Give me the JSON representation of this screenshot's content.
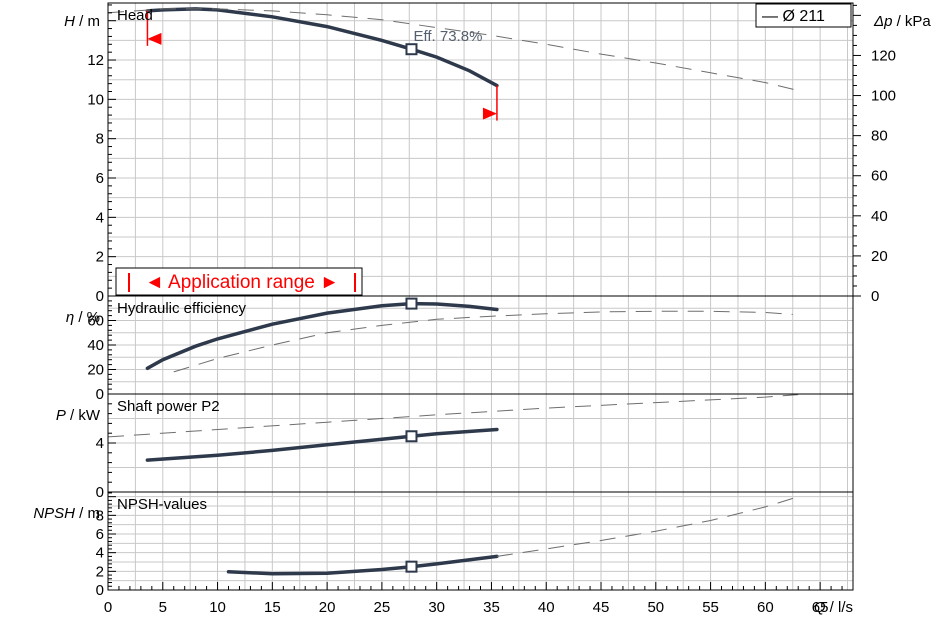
{
  "legend": {
    "entry": "— Ø 211"
  },
  "application_range": {
    "label": "◄ Application range ►"
  },
  "annotation": {
    "eff_label": "Eff.  73.8%"
  },
  "colors": {
    "curve": "#2e3a4c",
    "dashed": "#6e6e6e",
    "accent_red": "#ff0000",
    "grid": "#c8c8c8"
  },
  "chart_data": [
    {
      "type": "line",
      "title": "Head",
      "ylabel_var": "H",
      "ylabel_unit": " / m",
      "y2label_var": "Δp",
      "y2label_unit": " / kPa",
      "xlim": [
        0,
        68
      ],
      "ylim": [
        0,
        14.9
      ],
      "y_ticks": [
        0,
        2,
        4,
        6,
        8,
        10,
        12
      ],
      "y2_ticks": [
        0,
        20,
        40,
        60,
        80,
        100,
        120
      ],
      "y2_factor": 9.81,
      "series": [
        {
          "style": "solid",
          "points": [
            [
              3.6,
              14.5
            ],
            [
              5,
              14.55
            ],
            [
              8,
              14.6
            ],
            [
              10,
              14.55
            ],
            [
              15,
              14.2
            ],
            [
              20,
              13.7
            ],
            [
              25,
              13.0
            ],
            [
              27.7,
              12.55
            ],
            [
              30,
              12.15
            ],
            [
              33,
              11.45
            ],
            [
              35.5,
              10.7
            ]
          ]
        },
        {
          "style": "dashed",
          "points": [
            [
              0,
              14.4
            ],
            [
              5,
              14.6
            ],
            [
              10,
              14.6
            ],
            [
              15,
              14.5
            ],
            [
              20,
              14.3
            ],
            [
              25,
              14.05
            ],
            [
              30,
              13.65
            ],
            [
              35,
              13.25
            ],
            [
              40,
              12.8
            ],
            [
              45,
              12.3
            ],
            [
              50,
              11.85
            ],
            [
              55,
              11.35
            ],
            [
              60,
              10.85
            ],
            [
              63,
              10.45
            ]
          ]
        }
      ],
      "duty_point": [
        27.7,
        12.55
      ],
      "range_markers": [
        [
          3.6,
          14.5
        ],
        [
          35.5,
          10.7
        ]
      ]
    },
    {
      "type": "line",
      "title": "Hydraulic efficiency",
      "ylabel_var": "η",
      "ylabel_unit": " / %",
      "xlim": [
        0,
        68
      ],
      "ylim": [
        0,
        80
      ],
      "y_ticks": [
        0,
        20,
        40,
        60
      ],
      "series": [
        {
          "style": "solid",
          "points": [
            [
              3.6,
              21
            ],
            [
              5,
              28
            ],
            [
              8,
              39
            ],
            [
              10,
              45
            ],
            [
              15,
              57
            ],
            [
              20,
              66
            ],
            [
              25,
              72
            ],
            [
              27.7,
              73.8
            ],
            [
              30,
              73.5
            ],
            [
              33,
              71.5
            ],
            [
              35.5,
              69
            ]
          ]
        },
        {
          "style": "dashed",
          "points": [
            [
              6,
              18
            ],
            [
              10,
              29
            ],
            [
              15,
              40
            ],
            [
              20,
              50
            ],
            [
              25,
              56
            ],
            [
              30,
              61
            ],
            [
              35,
              63.5
            ],
            [
              40,
              65.5
            ],
            [
              45,
              67
            ],
            [
              50,
              67.5
            ],
            [
              55,
              67.5
            ],
            [
              60,
              66.5
            ],
            [
              62.5,
              65
            ]
          ]
        }
      ],
      "duty_point": [
        27.7,
        73.8
      ]
    },
    {
      "type": "line",
      "title": "Shaft power P2",
      "ylabel_var": "P",
      "ylabel_unit": "  / kW",
      "xlim": [
        0,
        68
      ],
      "ylim": [
        0,
        8
      ],
      "y_ticks": [
        0,
        4
      ],
      "series": [
        {
          "style": "solid",
          "points": [
            [
              3.6,
              2.6
            ],
            [
              10,
              3.0
            ],
            [
              15,
              3.4
            ],
            [
              20,
              3.85
            ],
            [
              25,
              4.3
            ],
            [
              27.7,
              4.55
            ],
            [
              30,
              4.75
            ],
            [
              35.5,
              5.1
            ]
          ]
        },
        {
          "style": "dashed",
          "points": [
            [
              0,
              4.5
            ],
            [
              10,
              5.1
            ],
            [
              20,
              5.7
            ],
            [
              30,
              6.3
            ],
            [
              40,
              6.85
            ],
            [
              50,
              7.3
            ],
            [
              60,
              7.75
            ],
            [
              63,
              7.95
            ]
          ]
        }
      ],
      "duty_point": [
        27.7,
        4.55
      ]
    },
    {
      "type": "line",
      "title": "NPSH-values",
      "ylabel_var": "NPSH",
      "ylabel_unit": " / m",
      "xlabel_var": "Q",
      "xlabel_unit": " / l/s",
      "xlim": [
        0,
        68
      ],
      "ylim": [
        0,
        10.5
      ],
      "y_ticks": [
        0,
        2,
        4,
        6,
        8
      ],
      "x_ticks": [
        0,
        5,
        10,
        15,
        20,
        25,
        30,
        35,
        40,
        45,
        50,
        55,
        60,
        65
      ],
      "series": [
        {
          "style": "solid",
          "points": [
            [
              11,
              1.95
            ],
            [
              15,
              1.75
            ],
            [
              20,
              1.8
            ],
            [
              25,
              2.2
            ],
            [
              27.7,
              2.5
            ],
            [
              30,
              2.8
            ],
            [
              35.5,
              3.6
            ]
          ]
        },
        {
          "style": "dashed",
          "points": [
            [
              35.5,
              3.6
            ],
            [
              40,
              4.4
            ],
            [
              45,
              5.3
            ],
            [
              50,
              6.3
            ],
            [
              55,
              7.45
            ],
            [
              60,
              8.9
            ],
            [
              63,
              10.0
            ]
          ]
        }
      ],
      "duty_point": [
        27.7,
        2.5
      ]
    }
  ]
}
